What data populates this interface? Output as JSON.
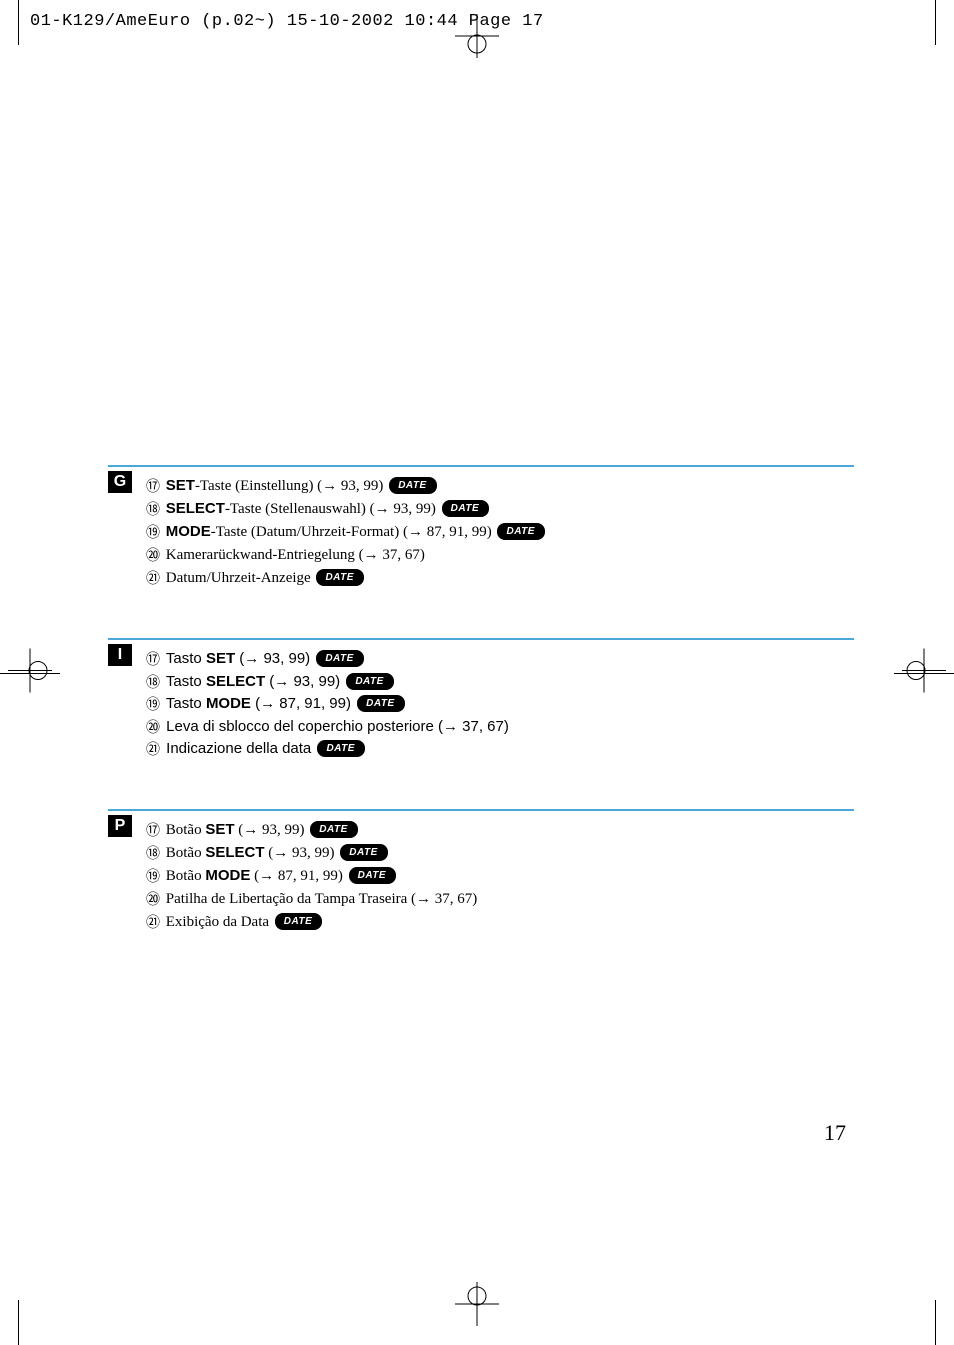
{
  "header": "01-K129/AmeEuro (p.02~)  15-10-2002  10:44  Page 17",
  "pageNumber": "17",
  "dateBadgeText": "DATE",
  "colors": {
    "rule": "#4aa8d8",
    "badge": "#000000"
  },
  "sections": [
    {
      "langCode": "G",
      "fontFamily": "serif",
      "items": [
        {
          "num": "⑰",
          "boldPrefix": "SET",
          "text": "-Taste (Einstellung) (→ 93, 99)",
          "date": true
        },
        {
          "num": "⑱",
          "boldPrefix": "SELECT",
          "text": "-Taste (Stellenauswahl) (→ 93, 99)",
          "date": true
        },
        {
          "num": "⑲",
          "boldPrefix": "MODE",
          "text": "-Taste (Datum/Uhrzeit-Format) (→ 87, 91, 99)",
          "date": true
        },
        {
          "num": "⑳",
          "boldPrefix": "",
          "text": "Kamerarückwand-Entriegelung (→ 37, 67)",
          "date": false
        },
        {
          "num": "㉑",
          "boldPrefix": "",
          "text": "Datum/Uhrzeit-Anzeige",
          "date": true
        }
      ]
    },
    {
      "langCode": "I",
      "fontFamily": "sans",
      "items": [
        {
          "num": "⑰",
          "boldPrefix": "SET",
          "textPrefix": "Tasto ",
          "text": " (→ 93, 99)",
          "date": true
        },
        {
          "num": "⑱",
          "boldPrefix": "SELECT",
          "textPrefix": "Tasto ",
          "text": " (→ 93, 99)",
          "date": true
        },
        {
          "num": "⑲",
          "boldPrefix": "MODE",
          "textPrefix": "Tasto ",
          "text": " (→ 87, 91, 99)",
          "date": true
        },
        {
          "num": "⑳",
          "boldPrefix": "",
          "textPrefix": "",
          "text": "Leva di sblocco del coperchio posteriore (→ 37, 67)",
          "date": false
        },
        {
          "num": "㉑",
          "boldPrefix": "",
          "textPrefix": "",
          "text": "Indicazione della data",
          "date": true
        }
      ]
    },
    {
      "langCode": "P",
      "fontFamily": "serif",
      "items": [
        {
          "num": "⑰",
          "boldPrefix": "SET",
          "textPrefix": "Botão ",
          "text": " (→ 93, 99)",
          "date": true
        },
        {
          "num": "⑱",
          "boldPrefix": "SELECT",
          "textPrefix": "Botão ",
          "text": " (→ 93, 99)",
          "date": true
        },
        {
          "num": "⑲",
          "boldPrefix": "MODE",
          "textPrefix": "Botão ",
          "text": " (→ 87, 91, 99)",
          "date": true
        },
        {
          "num": "⑳",
          "boldPrefix": "",
          "textPrefix": "",
          "text": "Patilha de Libertação da Tampa Traseira (→ 37, 67)",
          "date": false
        },
        {
          "num": "㉑",
          "boldPrefix": "",
          "textPrefix": "",
          "text": "Exibição da Data",
          "date": true
        }
      ]
    }
  ]
}
